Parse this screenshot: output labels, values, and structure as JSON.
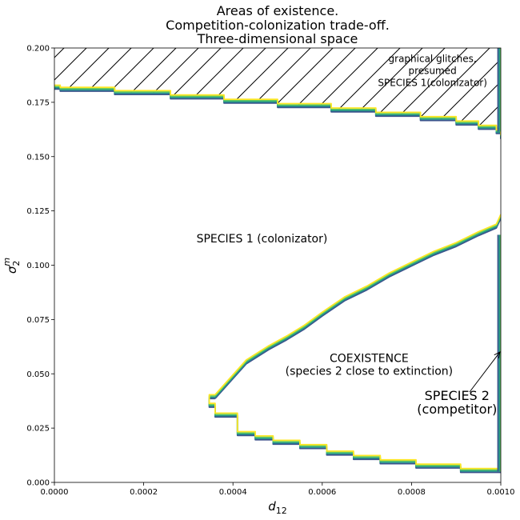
{
  "chart_data": {
    "type": "contour",
    "title": [
      "Areas of existence.",
      "Competition-colonization trade-off.",
      "Three-dimensional space"
    ],
    "xlabel": "d",
    "xlabel_sub": "12",
    "ylabel": "σ",
    "ylabel_sub": "2",
    "ylabel_sup": "m",
    "xlim": [
      0,
      0.001
    ],
    "ylim": [
      0,
      0.2
    ],
    "x_ticks": [
      {
        "value": 0.0,
        "label": "0.0000"
      },
      {
        "value": 0.0002,
        "label": "0.0002"
      },
      {
        "value": 0.0004,
        "label": "0.0004"
      },
      {
        "value": 0.0006,
        "label": "0.0006"
      },
      {
        "value": 0.0008,
        "label": "0.0008"
      },
      {
        "value": 0.001,
        "label": "0.0010"
      }
    ],
    "y_ticks": [
      {
        "value": 0.0,
        "label": "0.000"
      },
      {
        "value": 0.025,
        "label": "0.025"
      },
      {
        "value": 0.05,
        "label": "0.050"
      },
      {
        "value": 0.075,
        "label": "0.075"
      },
      {
        "value": 0.1,
        "label": "0.100"
      },
      {
        "value": 0.125,
        "label": "0.125"
      },
      {
        "value": 0.15,
        "label": "0.150"
      },
      {
        "value": 0.175,
        "label": "0.175"
      },
      {
        "value": 0.2,
        "label": "0.200"
      }
    ],
    "contour_colors": [
      "#3b528b",
      "#21918c",
      "#5ec962",
      "#fde725"
    ],
    "boundaries": {
      "upper": [
        [
          0.0,
          0.182
        ],
        [
          1.3e-05,
          0.181
        ],
        [
          0.000135,
          0.1795
        ],
        [
          0.00026,
          0.1775
        ],
        [
          0.00038,
          0.1755
        ],
        [
          0.0005,
          0.1735
        ],
        [
          0.00062,
          0.1715
        ],
        [
          0.00072,
          0.1695
        ],
        [
          0.00082,
          0.1675
        ],
        [
          0.0009,
          0.1655
        ],
        [
          0.00095,
          0.1635
        ],
        [
          0.00099,
          0.1615
        ],
        [
          0.001,
          0.159
        ]
      ],
      "coexistence_upper": [
        [
          0.00036,
          0.0395
        ],
        [
          0.00043,
          0.0555
        ],
        [
          0.00048,
          0.062
        ],
        [
          0.00052,
          0.0665
        ],
        [
          0.00056,
          0.0715
        ],
        [
          0.0006,
          0.0775
        ],
        [
          0.00065,
          0.0845
        ],
        [
          0.0007,
          0.0895
        ],
        [
          0.00075,
          0.0955
        ],
        [
          0.0008,
          0.1005
        ],
        [
          0.00085,
          0.1055
        ],
        [
          0.0009,
          0.1095
        ],
        [
          0.00095,
          0.1145
        ],
        [
          0.00099,
          0.118
        ],
        [
          0.001,
          0.1225
        ]
      ],
      "coexistence_lower": [
        [
          0.00036,
          0.0395
        ],
        [
          0.000347,
          0.0355
        ],
        [
          0.00036,
          0.031
        ],
        [
          0.00041,
          0.0225
        ],
        [
          0.00045,
          0.0205
        ],
        [
          0.00049,
          0.0185
        ],
        [
          0.00055,
          0.0165
        ],
        [
          0.00061,
          0.0135
        ],
        [
          0.00067,
          0.0115
        ],
        [
          0.00073,
          0.0095
        ],
        [
          0.00081,
          0.0075
        ],
        [
          0.00091,
          0.0055
        ],
        [
          0.001,
          0.0055
        ]
      ],
      "right_edge": [
        [
          0.000998,
          0.005
        ],
        [
          0.000998,
          0.114
        ]
      ]
    },
    "hatched_region": {
      "pattern": "diagonal",
      "bounded_by": "upper"
    },
    "annotations": [
      {
        "lines": [
          "graphical glitches,",
          "presumed",
          "SPECIES 1(colonizator)"
        ],
        "x": 0.000847,
        "y": 0.1935,
        "size": "sm"
      },
      {
        "lines": [
          "SPECIES 1 (colonizator)"
        ],
        "x": 0.000465,
        "y": 0.1105,
        "size": "md"
      },
      {
        "lines": [
          "COEXISTENCE",
          "(species 2 close to extinction)"
        ],
        "x": 0.000705,
        "y": 0.0555,
        "size": "md"
      },
      {
        "lines": [
          "SPECIES 2",
          "(competitor)"
        ],
        "x": 0.000902,
        "y": 0.038,
        "size": "lg",
        "arrow_to": [
          0.000998,
          0.06
        ]
      }
    ]
  }
}
